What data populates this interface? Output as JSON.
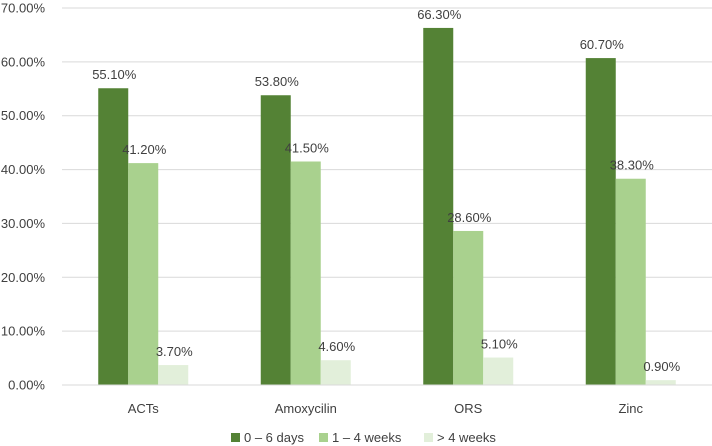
{
  "chart_data": {
    "type": "bar",
    "categories": [
      "ACTs",
      "Amoxycilin",
      "ORS",
      "Zinc"
    ],
    "series": [
      {
        "name": "0 – 6 days",
        "values": [
          55.1,
          53.8,
          66.3,
          60.7
        ],
        "labels": [
          "55.10%",
          "53.80%",
          "66.30%",
          "60.70%"
        ],
        "color": "#548235"
      },
      {
        "name": "1 – 4 weeks",
        "values": [
          41.2,
          41.5,
          28.6,
          38.3
        ],
        "labels": [
          "41.20%",
          "41.50%",
          "28.60%",
          "38.30%"
        ],
        "color": "#a9d18e"
      },
      {
        "name": "> 4 weeks",
        "values": [
          3.7,
          4.6,
          5.1,
          0.9
        ],
        "labels": [
          "3.70%",
          "4.60%",
          "5.10%",
          "0.90%"
        ],
        "color": "#e2efda"
      }
    ],
    "y_ticks": [
      "0.00%",
      "10.00%",
      "20.00%",
      "30.00%",
      "40.00%",
      "50.00%",
      "60.00%",
      "70.00%"
    ],
    "ylim": [
      0,
      70
    ],
    "grid": true,
    "legend_position": "bottom"
  }
}
